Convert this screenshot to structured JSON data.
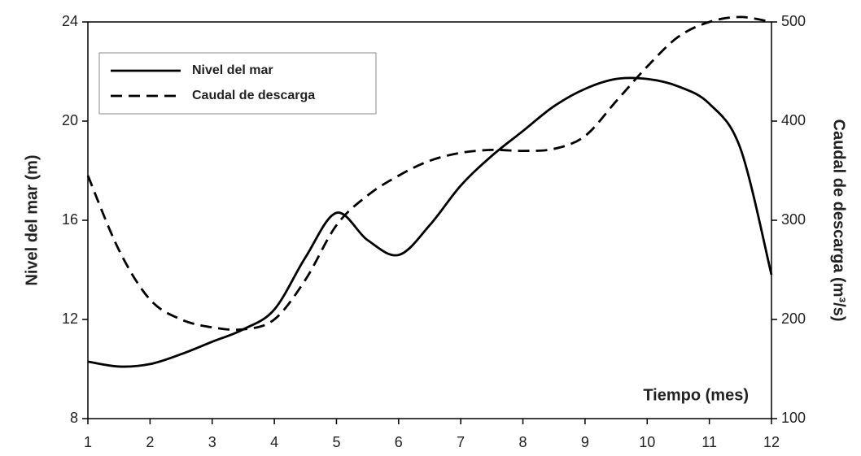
{
  "chart_data": {
    "type": "line",
    "xlabel": "Tiempo (mes)",
    "ylabel": "Nivel del mar (m)",
    "y2label": "Caudal de descarga (m³/s)",
    "x": [
      1,
      1.5,
      2,
      2.5,
      3,
      3.5,
      4,
      4.5,
      5,
      5.5,
      6,
      6.5,
      7,
      7.5,
      8,
      8.5,
      9,
      9.5,
      10,
      10.5,
      11,
      11.5,
      12
    ],
    "series": [
      {
        "name": "Nivel del mar",
        "color": "#000000",
        "dash": false,
        "values": [
          10.3,
          10.1,
          10.2,
          10.6,
          11.1,
          11.6,
          12.4,
          14.5,
          16.3,
          15.2,
          14.6,
          15.8,
          17.4,
          18.6,
          19.6,
          20.6,
          21.3,
          21.7,
          21.7,
          21.4,
          20.7,
          18.9,
          13.8
        ]
      },
      {
        "name": "Caudal de descarga",
        "color": "#000000",
        "dash": true,
        "axis": "y2",
        "values": [
          345,
          270,
          220,
          200,
          192,
          190,
          200,
          240,
          295,
          325,
          345,
          360,
          368,
          371,
          370,
          372,
          385,
          420,
          455,
          485,
          500,
          505,
          500
        ]
      }
    ],
    "xlim": [
      1,
      12
    ],
    "xticks": [
      1,
      2,
      3,
      4,
      5,
      6,
      7,
      8,
      9,
      10,
      11,
      12
    ],
    "ylim": [
      8,
      24
    ],
    "yticks": [
      8,
      12,
      16,
      20,
      24
    ],
    "y2lim": [
      100,
      500
    ],
    "y2ticks": [
      100,
      200,
      300,
      400,
      500
    ],
    "legend": "upper left"
  }
}
